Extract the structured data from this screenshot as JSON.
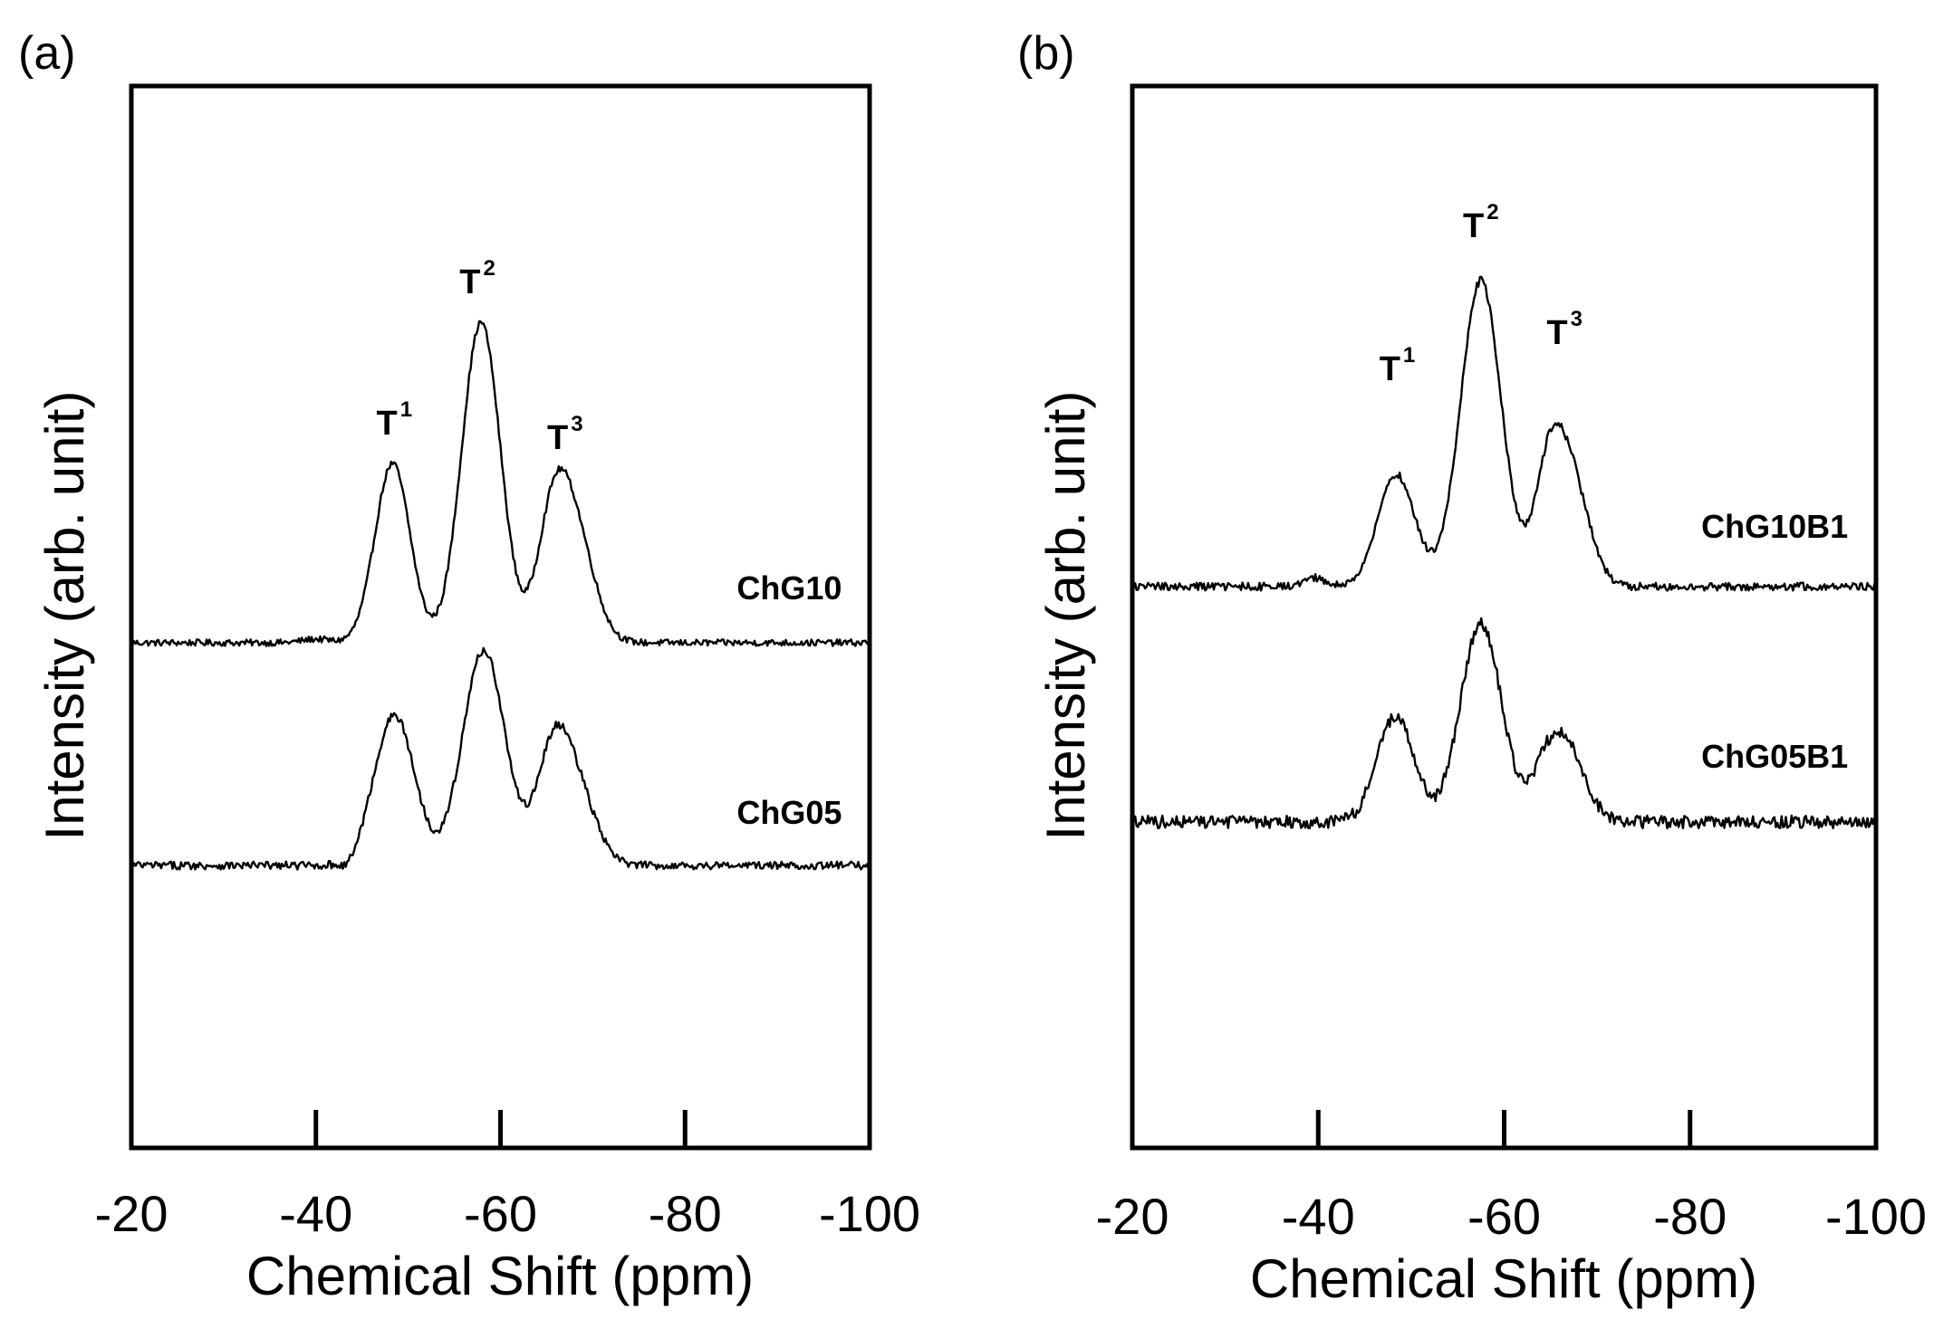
{
  "chart_data": [
    {
      "type": "line",
      "panel_label": "(a)",
      "xlabel": "Chemical Shift (ppm)",
      "ylabel": "Intensity (arb. unit)",
      "xlim": [
        -20,
        -100
      ],
      "xticks": [
        -20,
        -40,
        -60,
        -80,
        -100
      ],
      "x_tick_labels": [
        "-20",
        "-40",
        "-60",
        "-80",
        "-100"
      ],
      "grid": false,
      "peak_labels": [
        {
          "base": "T",
          "sup": "1",
          "x": -48.5,
          "y": 1.15
        },
        {
          "base": "T",
          "sup": "2",
          "x": -57.5,
          "y": 1.93
        },
        {
          "base": "T",
          "sup": "3",
          "x": -67,
          "y": 1.07
        }
      ],
      "series": [
        {
          "name": "ChG10",
          "label_x": -97,
          "label_y": 0.24,
          "baseline": 0,
          "noise_amplitude": 0.018,
          "bumps": [
            {
              "x": -40,
              "amp": 0.02,
              "width": 1.5
            },
            {
              "x": -48.3,
              "amp": 0.99,
              "width": 1.9
            },
            {
              "x": -57.9,
              "amp": 1.77,
              "width": 2.1
            },
            {
              "x": -65.6,
              "amp": 0.57,
              "width": 1.7
            },
            {
              "x": -68.0,
              "amp": 0.6,
              "width": 2.1
            }
          ]
        },
        {
          "name": "ChG05",
          "label_x": -97,
          "label_y": -1.0,
          "baseline": -1.23,
          "noise_amplitude": 0.022,
          "bumps": [
            {
              "x": -43.5,
              "amp": -0.04,
              "width": 0.8
            },
            {
              "x": -48.5,
              "amp": 0.83,
              "width": 2.2
            },
            {
              "x": -58.2,
              "amp": 1.19,
              "width": 2.3
            },
            {
              "x": -65.6,
              "amp": 0.55,
              "width": 1.8
            },
            {
              "x": -68.2,
              "amp": 0.4,
              "width": 2.1
            }
          ]
        }
      ]
    },
    {
      "type": "line",
      "panel_label": "(b)",
      "xlabel": "Chemical Shift (ppm)",
      "ylabel": "Intensity (arb. unit)",
      "xlim": [
        -20,
        -100
      ],
      "xticks": [
        -20,
        -40,
        -60,
        -80,
        -100
      ],
      "x_tick_labels": [
        "-20",
        "-40",
        "-60",
        "-80",
        "-100"
      ],
      "grid": false,
      "peak_labels": [
        {
          "base": "T",
          "sup": "1",
          "x": -48.5,
          "y": 1.14
        },
        {
          "base": "T",
          "sup": "2",
          "x": -57.5,
          "y": 1.93
        },
        {
          "base": "T",
          "sup": "3",
          "x": -66.5,
          "y": 1.34
        }
      ],
      "series": [
        {
          "name": "ChG10B1",
          "label_x": -97,
          "label_y": 0.27,
          "baseline": 0,
          "noise_amplitude": 0.022,
          "bumps": [
            {
              "x": -39.5,
              "amp": 0.05,
              "width": 1.2
            },
            {
              "x": -48.4,
              "amp": 0.62,
              "width": 2.0
            },
            {
              "x": -57.5,
              "amp": 1.69,
              "width": 2.2
            },
            {
              "x": -64.8,
              "amp": 0.6,
              "width": 1.6
            },
            {
              "x": -67.3,
              "amp": 0.55,
              "width": 1.9
            }
          ]
        },
        {
          "name": "ChG05B1",
          "label_x": -97,
          "label_y": -1.0,
          "baseline": -1.3,
          "noise_amplitude": 0.035,
          "bumps": [
            {
              "x": -48.3,
              "amp": 0.58,
              "width": 2.0
            },
            {
              "x": -57.5,
              "amp": 1.1,
              "width": 2.2
            },
            {
              "x": -64.8,
              "amp": 0.34,
              "width": 1.7
            },
            {
              "x": -67.3,
              "amp": 0.3,
              "width": 1.8
            }
          ]
        }
      ]
    }
  ]
}
